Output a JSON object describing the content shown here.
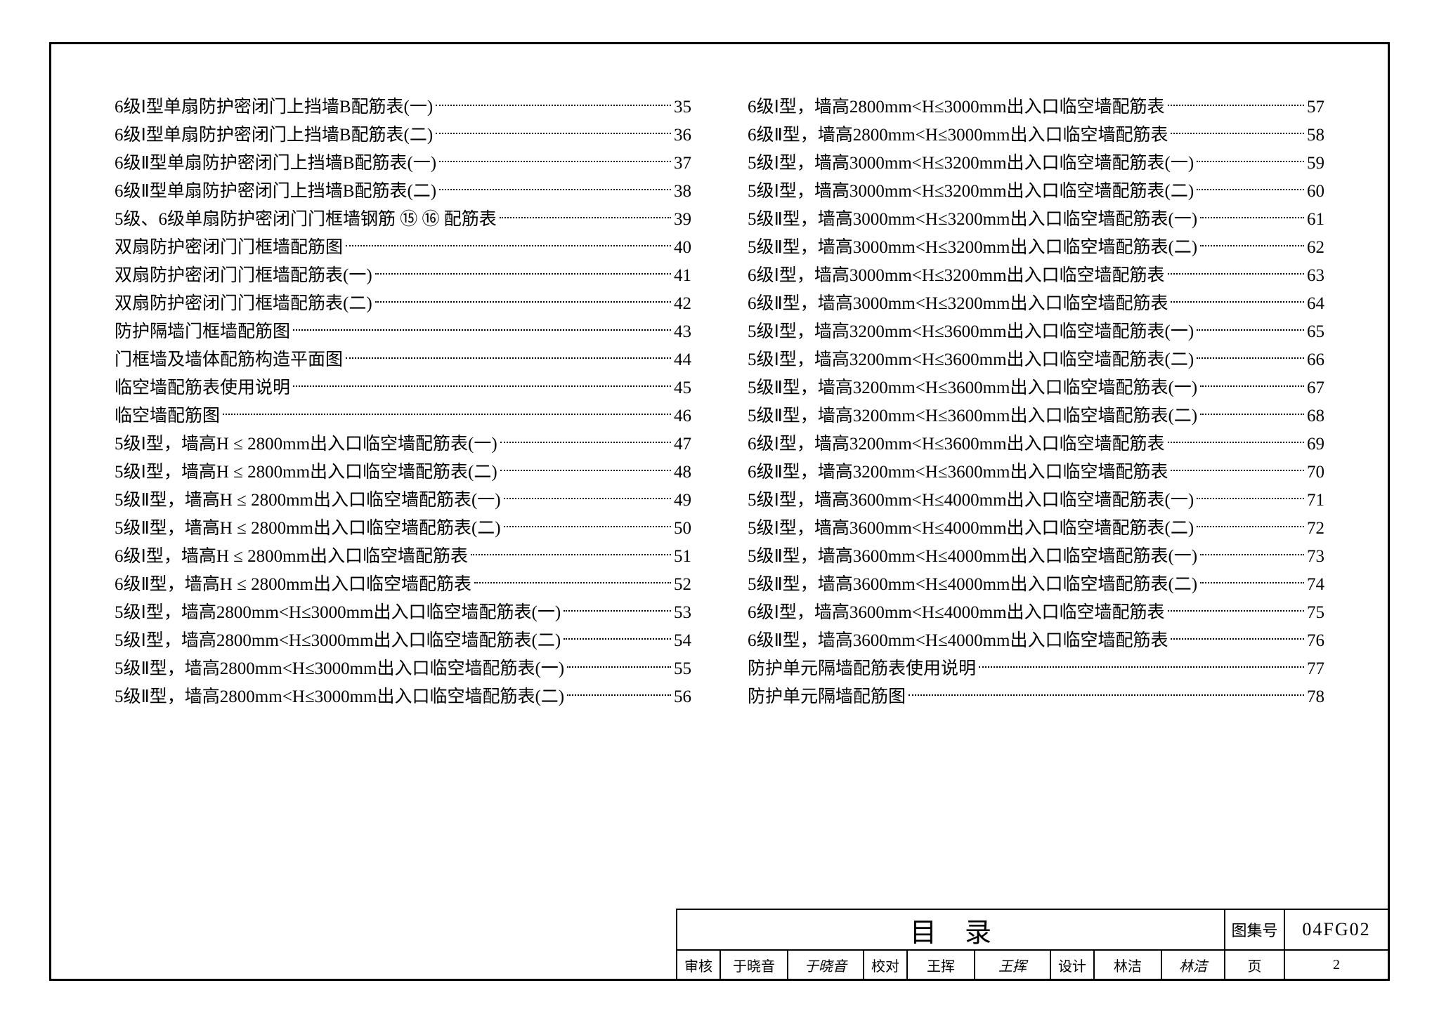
{
  "left_column": [
    {
      "label": "6级Ⅰ型单扇防护密闭门上挡墙B配筋表(一)",
      "page": "35"
    },
    {
      "label": "6级Ⅰ型单扇防护密闭门上挡墙B配筋表(二)",
      "page": "36"
    },
    {
      "label": "6级Ⅱ型单扇防护密闭门上挡墙B配筋表(一)",
      "page": "37"
    },
    {
      "label": "6级Ⅱ型单扇防护密闭门上挡墙B配筋表(二)",
      "page": "38"
    },
    {
      "label": "5级、6级单扇防护密闭门门框墙钢筋 ⑮ ⑯ 配筋表",
      "page": "39"
    },
    {
      "label": "双扇防护密闭门门框墙配筋图",
      "page": "40"
    },
    {
      "label": "双扇防护密闭门门框墙配筋表(一)",
      "page": "41"
    },
    {
      "label": "双扇防护密闭门门框墙配筋表(二)",
      "page": "42"
    },
    {
      "label": "防护隔墙门框墙配筋图",
      "page": "43"
    },
    {
      "label": "门框墙及墙体配筋构造平面图",
      "page": "44"
    },
    {
      "label": "临空墙配筋表使用说明",
      "page": "45"
    },
    {
      "label": "临空墙配筋图",
      "page": "46"
    },
    {
      "label": "5级Ⅰ型，墙高H ≤ 2800mm出入口临空墙配筋表(一)",
      "page": "47"
    },
    {
      "label": "5级Ⅰ型，墙高H ≤ 2800mm出入口临空墙配筋表(二)",
      "page": "48"
    },
    {
      "label": "5级Ⅱ型，墙高H ≤ 2800mm出入口临空墙配筋表(一)",
      "page": "49"
    },
    {
      "label": "5级Ⅱ型，墙高H ≤ 2800mm出入口临空墙配筋表(二)",
      "page": "50"
    },
    {
      "label": "6级Ⅰ型，墙高H ≤ 2800mm出入口临空墙配筋表",
      "page": "51"
    },
    {
      "label": "6级Ⅱ型，墙高H ≤ 2800mm出入口临空墙配筋表",
      "page": "52"
    },
    {
      "label": "5级Ⅰ型，墙高2800mm<H≤3000mm出入口临空墙配筋表(一)",
      "page": "53"
    },
    {
      "label": "5级Ⅰ型，墙高2800mm<H≤3000mm出入口临空墙配筋表(二)",
      "page": "54"
    },
    {
      "label": "5级Ⅱ型，墙高2800mm<H≤3000mm出入口临空墙配筋表(一)",
      "page": "55"
    },
    {
      "label": "5级Ⅱ型，墙高2800mm<H≤3000mm出入口临空墙配筋表(二)",
      "page": "56"
    }
  ],
  "right_column": [
    {
      "label": "6级Ⅰ型，墙高2800mm<H≤3000mm出入口临空墙配筋表",
      "page": "57"
    },
    {
      "label": "6级Ⅱ型，墙高2800mm<H≤3000mm出入口临空墙配筋表",
      "page": "58"
    },
    {
      "label": "5级Ⅰ型，墙高3000mm<H≤3200mm出入口临空墙配筋表(一)",
      "page": "59"
    },
    {
      "label": "5级Ⅰ型，墙高3000mm<H≤3200mm出入口临空墙配筋表(二)",
      "page": "60"
    },
    {
      "label": "5级Ⅱ型，墙高3000mm<H≤3200mm出入口临空墙配筋表(一)",
      "page": "61"
    },
    {
      "label": "5级Ⅱ型，墙高3000mm<H≤3200mm出入口临空墙配筋表(二)",
      "page": "62"
    },
    {
      "label": "6级Ⅰ型，墙高3000mm<H≤3200mm出入口临空墙配筋表",
      "page": "63"
    },
    {
      "label": "6级Ⅱ型，墙高3000mm<H≤3200mm出入口临空墙配筋表",
      "page": "64"
    },
    {
      "label": "5级Ⅰ型，墙高3200mm<H≤3600mm出入口临空墙配筋表(一)",
      "page": "65"
    },
    {
      "label": "5级Ⅰ型，墙高3200mm<H≤3600mm出入口临空墙配筋表(二)",
      "page": "66"
    },
    {
      "label": "5级Ⅱ型，墙高3200mm<H≤3600mm出入口临空墙配筋表(一)",
      "page": "67"
    },
    {
      "label": "5级Ⅱ型，墙高3200mm<H≤3600mm出入口临空墙配筋表(二)",
      "page": "68"
    },
    {
      "label": "6级Ⅰ型，墙高3200mm<H≤3600mm出入口临空墙配筋表",
      "page": "69"
    },
    {
      "label": "6级Ⅱ型，墙高3200mm<H≤3600mm出入口临空墙配筋表",
      "page": "70"
    },
    {
      "label": "5级Ⅰ型，墙高3600mm<H≤4000mm出入口临空墙配筋表(一)",
      "page": "71"
    },
    {
      "label": "5级Ⅰ型，墙高3600mm<H≤4000mm出入口临空墙配筋表(二)",
      "page": "72"
    },
    {
      "label": "5级Ⅱ型，墙高3600mm<H≤4000mm出入口临空墙配筋表(一)",
      "page": "73"
    },
    {
      "label": "5级Ⅱ型，墙高3600mm<H≤4000mm出入口临空墙配筋表(二)",
      "page": "74"
    },
    {
      "label": "6级Ⅰ型，墙高3600mm<H≤4000mm出入口临空墙配筋表",
      "page": "75"
    },
    {
      "label": "6级Ⅱ型，墙高3600mm<H≤4000mm出入口临空墙配筋表",
      "page": "76"
    },
    {
      "label": "防护单元隔墙配筋表使用说明",
      "page": "77"
    },
    {
      "label": "防护单元隔墙配筋图",
      "page": "78"
    }
  ],
  "titleblock": {
    "main_title": "目录",
    "code_label": "图集号",
    "code_value": "04FG02",
    "review_label": "审核",
    "review_name": "于晓音",
    "review_sig": "于晓音",
    "check_label": "校对",
    "check_name": "王挥",
    "check_sig": "王挥",
    "design_label": "设计",
    "design_name": "林洁",
    "design_sig": "林洁",
    "page_label": "页",
    "page_num": "2"
  }
}
